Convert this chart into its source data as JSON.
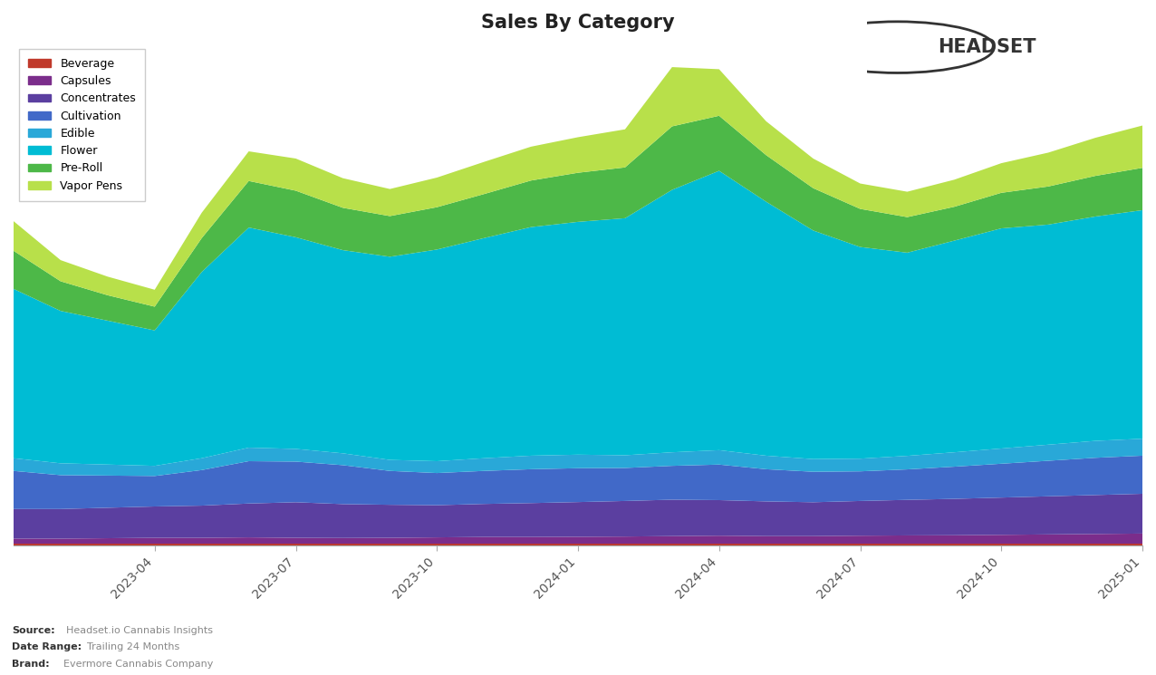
{
  "title": "Sales By Category",
  "categories": [
    "Beverage",
    "Capsules",
    "Concentrates",
    "Cultivation",
    "Edible",
    "Flower",
    "Pre-Roll",
    "Vapor Pens"
  ],
  "colors": [
    "#c0392b",
    "#7b2d8b",
    "#5b3fa0",
    "#4169c8",
    "#29a8d8",
    "#00bcd4",
    "#4db848",
    "#b8e04a"
  ],
  "x_labels": [
    "2023-04",
    "2023-07",
    "2023-10",
    "2024-01",
    "2024-04",
    "2024-07",
    "2024-10",
    "2025-01"
  ],
  "background_color": "#ffffff",
  "footer_brand": "Evermore Cannabis Company",
  "footer_daterange": "Trailing 24 Months",
  "footer_source": "Headset.io Cannabis Insights",
  "beverage": [
    200,
    200,
    200,
    200,
    200,
    200,
    200,
    200,
    200,
    200,
    200,
    200,
    200,
    200,
    200,
    200,
    200,
    200,
    200,
    200,
    200,
    200,
    200,
    200,
    200
  ],
  "capsules": [
    600,
    600,
    650,
    700,
    700,
    750,
    700,
    680,
    700,
    750,
    800,
    800,
    820,
    850,
    900,
    950,
    900,
    900,
    950,
    980,
    1000,
    1050,
    1100,
    1150,
    1200
  ],
  "concentrates": [
    3500,
    3500,
    3600,
    3700,
    3800,
    4000,
    4200,
    4000,
    3900,
    3800,
    3900,
    4000,
    4100,
    4200,
    4300,
    4200,
    4100,
    4000,
    4100,
    4200,
    4300,
    4400,
    4500,
    4600,
    4700
  ],
  "cultivation": [
    4500,
    4000,
    3800,
    3600,
    4200,
    5000,
    4800,
    4600,
    4000,
    3800,
    3900,
    4000,
    4000,
    3900,
    4000,
    4200,
    3800,
    3600,
    3500,
    3600,
    3800,
    4000,
    4200,
    4400,
    4500
  ],
  "edible": [
    1500,
    1400,
    1300,
    1200,
    1400,
    1600,
    1500,
    1400,
    1300,
    1400,
    1500,
    1600,
    1600,
    1500,
    1600,
    1700,
    1600,
    1500,
    1500,
    1600,
    1700,
    1800,
    1900,
    2000,
    2000
  ],
  "flower": [
    20000,
    18000,
    17000,
    16000,
    22000,
    26000,
    25000,
    24000,
    24000,
    25000,
    26000,
    27000,
    27500,
    28000,
    31000,
    33000,
    30000,
    27000,
    25000,
    24000,
    25000,
    26000,
    26000,
    26500,
    27000
  ],
  "preroll": [
    4500,
    3500,
    3000,
    2800,
    4000,
    5500,
    5500,
    5000,
    4800,
    5000,
    5200,
    5500,
    5800,
    6000,
    7500,
    6500,
    5500,
    5000,
    4500,
    4200,
    4000,
    4200,
    4500,
    4800,
    5000
  ],
  "vaporpens": [
    3500,
    2500,
    2200,
    2000,
    3000,
    3500,
    3800,
    3500,
    3200,
    3500,
    3800,
    4000,
    4200,
    4500,
    7000,
    5500,
    4000,
    3500,
    3000,
    3000,
    3200,
    3500,
    4000,
    4500,
    5000
  ]
}
